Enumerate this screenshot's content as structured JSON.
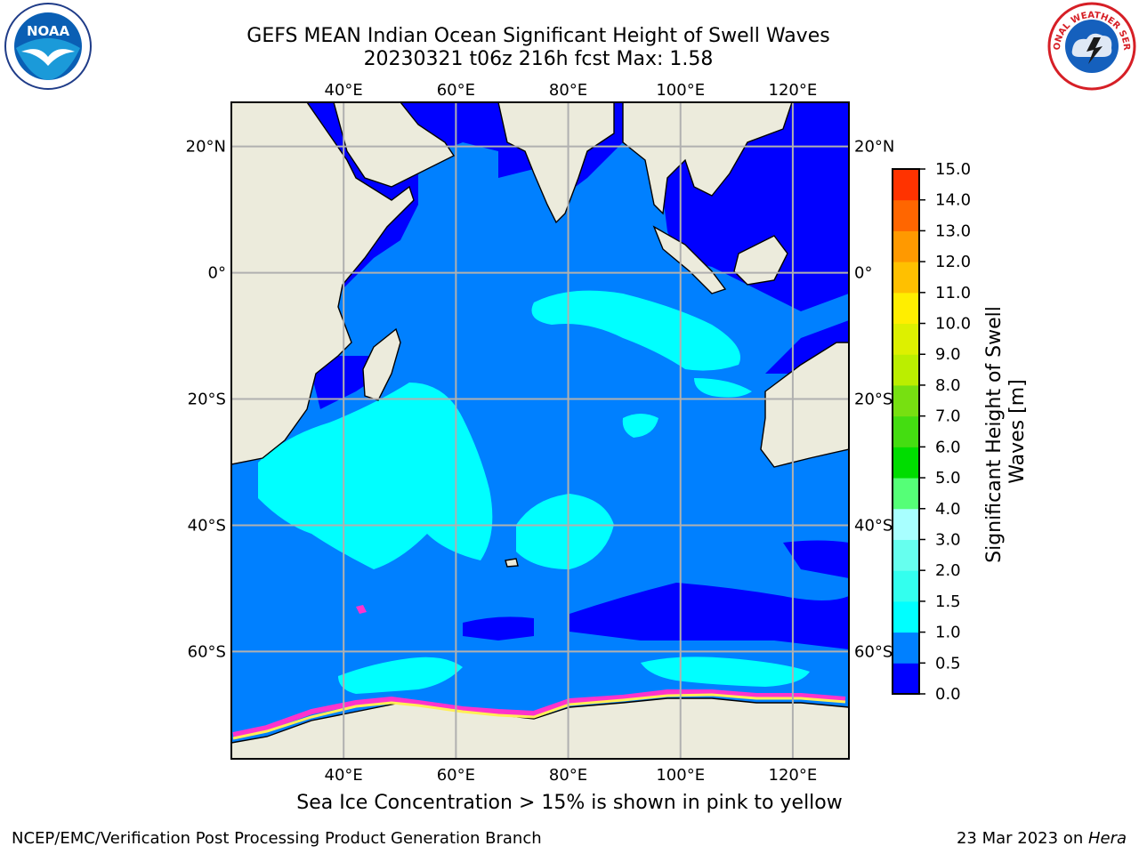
{
  "header": {
    "title_line1": "GEFS MEAN Indian Ocean Significant Height of Swell Waves",
    "title_line2": "20230321 t06z 216h fcst   Max: 1.58"
  },
  "logos": {
    "left": {
      "icon": "noaa-logo",
      "text": "NOAA"
    },
    "right": {
      "icon": "national-weather-service-logo",
      "text": "NATIONAL WEATHER SERVICE"
    }
  },
  "map": {
    "projection": "cylindrical",
    "lon_range": [
      20,
      130
    ],
    "lat_range": [
      -77,
      27
    ],
    "lon_labels": [
      "40°E",
      "60°E",
      "80°E",
      "100°E",
      "120°E"
    ],
    "lat_labels": [
      "20°N",
      "0°",
      "20°S",
      "40°S",
      "60°S"
    ],
    "colors": {
      "land": "#ecebdc",
      "ocean_low": "#0000ff",
      "ocean_mid": "#0080ff",
      "ocean_high": "#00ffff",
      "ice_pink": "#ff33cc",
      "ice_yellow": "#ffee55",
      "grid": "#b0b0b0"
    }
  },
  "colorbar": {
    "label_line1": "Significant Height of Swell",
    "label_line2": "Waves [m]",
    "ticks": [
      "0.0",
      "0.5",
      "1.0",
      "1.5",
      "2.0",
      "3.0",
      "4.0",
      "5.0",
      "6.0",
      "7.0",
      "8.0",
      "9.0",
      "10.0",
      "11.0",
      "12.0",
      "13.0",
      "14.0",
      "15.0"
    ],
    "colors": [
      "#0000ff",
      "#0080ff",
      "#00ffff",
      "#33ffee",
      "#66ffee",
      "#a8ffff",
      "#55ff77",
      "#00dd00",
      "#44dd11",
      "#77e011",
      "#bbee00",
      "#ddf000",
      "#ffee00",
      "#ffc000",
      "#ff9900",
      "#ff6600",
      "#ff3300",
      "#ff0000"
    ]
  },
  "footer": {
    "caption": "Sea Ice Concentration > 15% is shown in pink to yellow",
    "credit": "NCEP/EMC/Verification Post Processing Product Generation Branch",
    "date": "23 Mar 2023 on ",
    "machine": "Hera"
  }
}
